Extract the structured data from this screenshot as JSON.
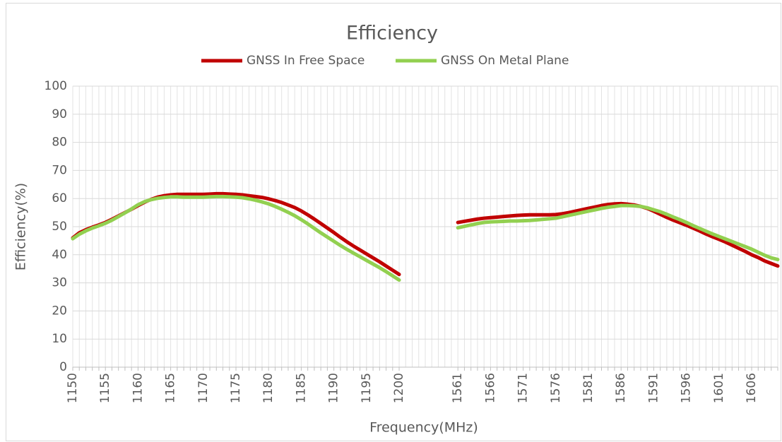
{
  "chart_data": {
    "type": "line",
    "title": "Efficiency",
    "x_label": "Frequency(MHz)",
    "y_label": "Efficiency(%)",
    "categories": [
      1150,
      1151,
      1152,
      1153,
      1154,
      1155,
      1156,
      1157,
      1158,
      1159,
      1160,
      1161,
      1162,
      1163,
      1164,
      1165,
      1166,
      1167,
      1168,
      1169,
      1170,
      1171,
      1172,
      1173,
      1174,
      1175,
      1176,
      1177,
      1178,
      1179,
      1180,
      1181,
      1182,
      1183,
      1184,
      1185,
      1186,
      1187,
      1188,
      1189,
      1190,
      1191,
      1192,
      1193,
      1194,
      1195,
      1196,
      1197,
      1198,
      1199,
      1200,
      null,
      null,
      null,
      null,
      null,
      null,
      null,
      null,
      1561,
      1562,
      1563,
      1564,
      1565,
      1566,
      1567,
      1568,
      1569,
      1570,
      1571,
      1572,
      1573,
      1574,
      1575,
      1576,
      1577,
      1578,
      1579,
      1580,
      1581,
      1582,
      1583,
      1584,
      1585,
      1586,
      1587,
      1588,
      1589,
      1590,
      1591,
      1592,
      1593,
      1594,
      1595,
      1596,
      1597,
      1598,
      1599,
      1600,
      1601,
      1602,
      1603,
      1604,
      1605,
      1606,
      1607,
      1608,
      1609,
      1610
    ],
    "series": [
      {
        "name": "GNSS In Free Space",
        "color": "#c00000",
        "values": [
          46.0,
          47.8,
          48.9,
          49.8,
          50.6,
          51.5,
          52.6,
          53.8,
          55.0,
          56.2,
          57.5,
          58.7,
          59.7,
          60.5,
          61.0,
          61.3,
          61.5,
          61.5,
          61.5,
          61.5,
          61.5,
          61.6,
          61.7,
          61.7,
          61.6,
          61.5,
          61.3,
          61.0,
          60.7,
          60.4,
          59.9,
          59.3,
          58.6,
          57.7,
          56.8,
          55.6,
          54.2,
          52.7,
          51.1,
          49.5,
          47.9,
          46.2,
          44.6,
          43.1,
          41.7,
          40.3,
          38.9,
          37.5,
          36.0,
          34.5,
          33.0,
          null,
          null,
          null,
          null,
          null,
          null,
          null,
          null,
          51.5,
          51.9,
          52.3,
          52.7,
          53.0,
          53.2,
          53.4,
          53.6,
          53.8,
          54.0,
          54.1,
          54.2,
          54.2,
          54.2,
          54.2,
          54.3,
          54.6,
          55.0,
          55.5,
          56.0,
          56.5,
          57.0,
          57.5,
          57.9,
          58.1,
          58.2,
          58.0,
          57.7,
          57.2,
          56.5,
          55.5,
          54.4,
          53.3,
          52.3,
          51.4,
          50.5,
          49.5,
          48.5,
          47.4,
          46.4,
          45.5,
          44.5,
          43.4,
          42.3,
          41.2,
          40.0,
          39.0,
          37.8,
          36.9,
          36.0
        ]
      },
      {
        "name": "GNSS On Metal Plane",
        "color": "#92d050",
        "values": [
          45.7,
          47.3,
          48.5,
          49.5,
          50.3,
          51.2,
          52.3,
          53.6,
          54.9,
          56.3,
          57.8,
          58.9,
          59.6,
          60.1,
          60.4,
          60.6,
          60.6,
          60.5,
          60.5,
          60.5,
          60.5,
          60.6,
          60.7,
          60.7,
          60.6,
          60.5,
          60.3,
          59.9,
          59.4,
          58.8,
          58.1,
          57.2,
          56.2,
          55.1,
          53.9,
          52.5,
          51.0,
          49.4,
          47.8,
          46.3,
          44.8,
          43.3,
          41.9,
          40.6,
          39.3,
          38.0,
          36.7,
          35.4,
          34.0,
          32.5,
          31.0,
          null,
          null,
          null,
          null,
          null,
          null,
          null,
          null,
          49.6,
          50.1,
          50.6,
          51.1,
          51.5,
          51.7,
          51.8,
          51.9,
          52.0,
          52.0,
          52.1,
          52.2,
          52.4,
          52.6,
          52.8,
          53.0,
          53.5,
          54.0,
          54.5,
          55.0,
          55.5,
          56.0,
          56.5,
          56.9,
          57.2,
          57.5,
          57.5,
          57.4,
          57.2,
          56.7,
          56.0,
          55.3,
          54.4,
          53.4,
          52.5,
          51.5,
          50.4,
          49.4,
          48.4,
          47.4,
          46.5,
          45.6,
          44.7,
          43.8,
          42.9,
          42.0,
          40.9,
          39.8,
          38.9,
          38.3
        ]
      }
    ],
    "ylim": [
      0,
      100
    ],
    "yticks": [
      0,
      10,
      20,
      30,
      40,
      50,
      60,
      70,
      80,
      90,
      100
    ],
    "grid": true,
    "legend": "top"
  }
}
